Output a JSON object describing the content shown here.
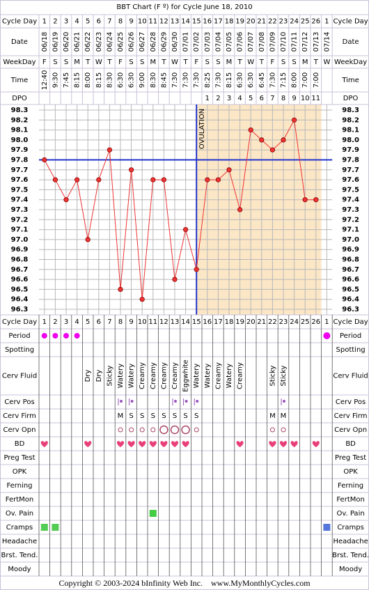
{
  "title": "BBT Chart (F º) for Cycle June 18, 2010",
  "row_labels": {
    "cycle_day": "Cycle Day",
    "date": "Date",
    "weekday": "WeekDay",
    "time": "Time",
    "dpo": "DPO"
  },
  "cycle_days": [
    1,
    2,
    3,
    4,
    5,
    6,
    7,
    8,
    9,
    10,
    11,
    12,
    13,
    14,
    15,
    16,
    17,
    18,
    19,
    20,
    21,
    22,
    23,
    24,
    25,
    26,
    1
  ],
  "dates": [
    "06/18",
    "06/19",
    "06/20",
    "06/21",
    "06/22",
    "06/23",
    "06/24",
    "06/25",
    "06/26",
    "06/27",
    "06/28",
    "06/29",
    "06/30",
    "07/01",
    "07/02",
    "07/03",
    "07/04",
    "07/05",
    "07/06",
    "07/07",
    "07/08",
    "07/09",
    "07/10",
    "07/11",
    "07/12",
    "07/13",
    "07/14"
  ],
  "weekdays": [
    "F",
    "S",
    "S",
    "M",
    "T",
    "W",
    "T",
    "F",
    "S",
    "S",
    "M",
    "T",
    "W",
    "T",
    "F",
    "S",
    "S",
    "M",
    "T",
    "W",
    "T",
    "F",
    "S",
    "S",
    "M",
    "T",
    "W"
  ],
  "times": [
    "12:40",
    "9:30",
    "7:45",
    "8:15",
    "8:00",
    "8:15",
    "8:30",
    "6:30",
    "6:30",
    "9:00",
    "8:30",
    "8:45",
    "7:30",
    "7:30",
    "7:30",
    "8:25",
    "7:30",
    "8:15",
    "6:30",
    "6:30",
    "6:45",
    "7:30",
    "7:15",
    "8:00",
    "7:00",
    "7:00",
    null
  ],
  "dpo": [
    null,
    null,
    null,
    null,
    null,
    null,
    null,
    null,
    null,
    null,
    null,
    null,
    null,
    null,
    null,
    1,
    2,
    3,
    4,
    5,
    6,
    7,
    8,
    9,
    10,
    11,
    null
  ],
  "chart_data": {
    "type": "line",
    "values": [
      97.8,
      97.6,
      97.4,
      97.6,
      97.0,
      97.6,
      97.9,
      96.5,
      97.7,
      96.4,
      97.6,
      97.6,
      96.6,
      97.1,
      96.7,
      97.6,
      97.6,
      97.7,
      97.3,
      98.1,
      98.0,
      97.9,
      98.0,
      98.2,
      97.4,
      97.4,
      null
    ],
    "color": "#ee3333",
    "ylim": [
      96.3,
      98.3
    ],
    "yticks": [
      98.3,
      98.2,
      98.1,
      {
        "value": 98,
        "label": "98.0"
      },
      97.9,
      97.8,
      97.7,
      97.6,
      97.5,
      97.4,
      97.3,
      97.2,
      97.1,
      {
        "value": 97,
        "label": "97.0"
      },
      96.9,
      96.8,
      96.7,
      96.6,
      96.5,
      96.4,
      96.3
    ],
    "grid": true,
    "coverline": 97.8,
    "coverline_color": "#2233cc",
    "ovulation_day": 15,
    "ovulation_label": "OVULATION",
    "luteal_color": "#fbe6c6"
  },
  "rows": [
    {
      "label": "Cycle Day"
    },
    {
      "label": "Period",
      "marks": [
        1,
        2,
        3,
        4,
        27
      ],
      "color": "#ee00ee"
    },
    {
      "label": "Spotting"
    },
    {
      "label": "Cerv Fluid",
      "texts": [
        null,
        null,
        null,
        null,
        "Dry",
        "Dry",
        "Sticky",
        "Watery",
        "Watery",
        "Creamy",
        "Creamy",
        "Creamy",
        "Creamy",
        "Eggwhite",
        "Watery",
        "Watery",
        "Creamy",
        "Watery",
        "Creamy",
        null,
        null,
        "Sticky",
        "Sticky",
        null,
        null,
        null,
        null
      ]
    },
    {
      "label": "Cerv Pos",
      "marks": [
        8,
        9,
        13,
        14,
        15,
        23
      ],
      "color": "#9955bb"
    },
    {
      "label": "Cerv Firm",
      "texts": [
        null,
        null,
        null,
        null,
        null,
        null,
        null,
        "M",
        "S",
        "S",
        "S",
        "S",
        "S",
        "S",
        "S",
        null,
        null,
        null,
        null,
        null,
        null,
        "M",
        "M",
        null,
        null,
        null,
        null
      ],
      "color": "#9955bb"
    },
    {
      "label": "Cerv Opn",
      "small": [
        8,
        9,
        10,
        11,
        15,
        22,
        23
      ],
      "large": [
        12,
        13,
        14
      ],
      "color": "#aa4466"
    },
    {
      "label": "BD",
      "marks": [
        1,
        5,
        8,
        9,
        10,
        11,
        12,
        13,
        14,
        19,
        22,
        23,
        24,
        26
      ],
      "color": "#e8407a"
    },
    {
      "label": "Preg Test"
    },
    {
      "label": "OPK"
    },
    {
      "label": "Ferning"
    },
    {
      "label": "FertMon"
    },
    {
      "label": "Ov. Pain",
      "marks": [
        11
      ],
      "color": "#44cc44"
    },
    {
      "label": "Cramps",
      "marks": [
        1,
        2,
        27
      ],
      "colors": [
        "#55cc55",
        "#55cc55",
        "#5577dd"
      ]
    },
    {
      "label": "Headache"
    },
    {
      "label": "Brst. Tend."
    },
    {
      "label": "Moody"
    }
  ],
  "footer": "Copyright © 2003-2024 bInfinity Web Inc.    www.MyMonthlyCycles.com"
}
